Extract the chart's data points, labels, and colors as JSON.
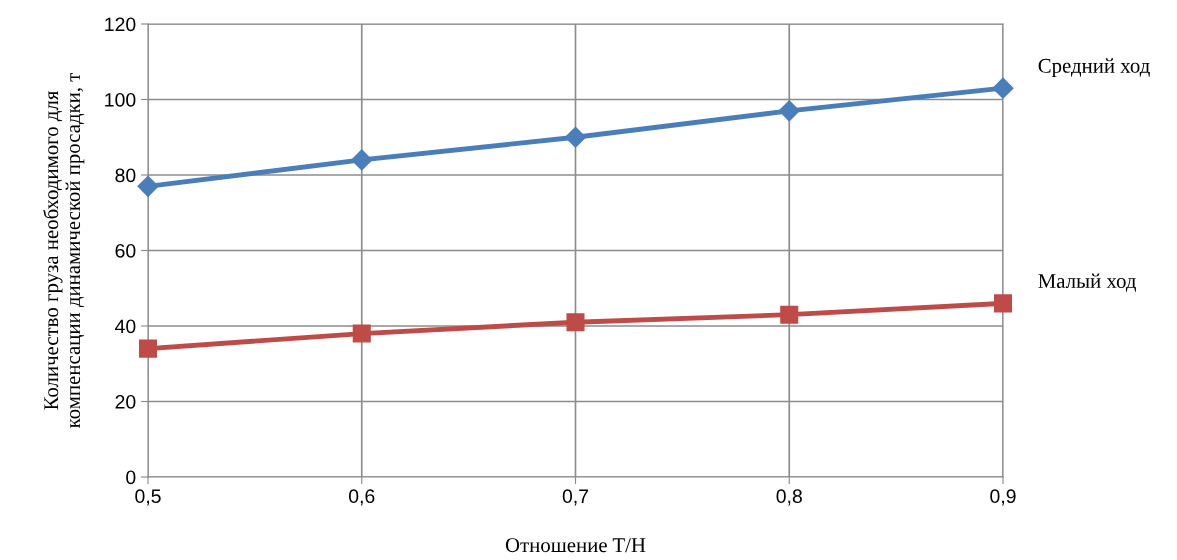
{
  "chart_data": {
    "type": "line",
    "xlabel": "Отношение T/H",
    "ylabel": "Количество груза необходимого для\nкомпенсации динамической просадки, т",
    "x": [
      0.5,
      0.6,
      0.7,
      0.8,
      0.9
    ],
    "series": [
      {
        "name": "Средний ход",
        "color": "#4a7ebb",
        "marker": "diamond",
        "values": [
          77,
          84,
          90,
          97,
          103
        ]
      },
      {
        "name": "Малый ход",
        "color": "#be4b48",
        "marker": "square",
        "values": [
          34,
          38,
          41,
          43,
          46
        ]
      }
    ],
    "xlim": [
      0.5,
      0.9
    ],
    "xticks": [
      {
        "value": 0.5,
        "label": "0,5"
      },
      {
        "value": 0.6,
        "label": "0,6"
      },
      {
        "value": 0.7,
        "label": "0,7"
      },
      {
        "value": 0.8,
        "label": "0,8"
      },
      {
        "value": 0.9,
        "label": "0,9"
      }
    ],
    "ylim": [
      0,
      120
    ],
    "yticks": [
      0,
      20,
      40,
      60,
      80,
      100,
      120
    ],
    "grid": true,
    "legend": false,
    "line_style": "solid"
  }
}
